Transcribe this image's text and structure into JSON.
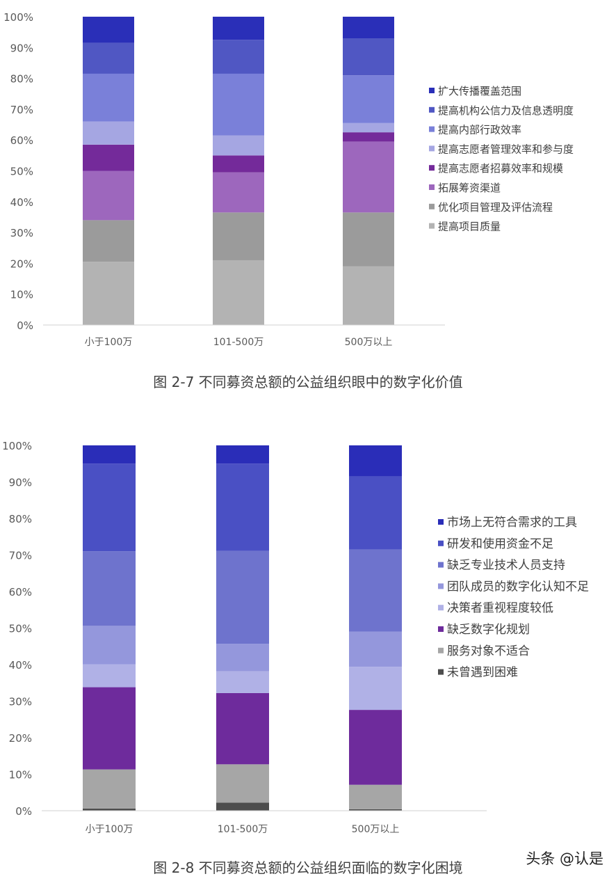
{
  "chart_data": [
    {
      "type": "bar",
      "stacked": true,
      "percent": true,
      "caption": "图 2-7 不同募资总额的公益组织眼中的数字化价值",
      "categories": [
        "小于100万",
        "101-500万",
        "500万以上"
      ],
      "yticks": [
        "0%",
        "10%",
        "20%",
        "30%",
        "40%",
        "50%",
        "60%",
        "70%",
        "80%",
        "90%",
        "100%"
      ],
      "ylim": [
        0,
        100
      ],
      "legend_position": "right",
      "series": [
        {
          "name": "提高项目质量",
          "color": "#b3b3b3",
          "values": [
            20.5,
            21,
            19
          ]
        },
        {
          "name": "优化项目管理及评估流程",
          "color": "#9b9b9b",
          "values": [
            13.5,
            15.5,
            17.5
          ]
        },
        {
          "name": "拓展筹资渠道",
          "color": "#9d67bd",
          "values": [
            16,
            13,
            23
          ]
        },
        {
          "name": "提高志愿者招募效率和规模",
          "color": "#742a9a",
          "values": [
            8.5,
            5.5,
            3
          ]
        },
        {
          "name": "提高志愿者管理效率和参与度",
          "color": "#a5a6e2",
          "values": [
            7.5,
            6.5,
            3
          ]
        },
        {
          "name": "提高内部行政效率",
          "color": "#7a80d9",
          "values": [
            15.5,
            20,
            15.5
          ]
        },
        {
          "name": "提高机构公信力及信息透明度",
          "color": "#5057c3",
          "values": [
            10,
            11,
            12
          ]
        },
        {
          "name": "扩大传播覆盖范围",
          "color": "#2a2fb8",
          "values": [
            8.5,
            7.5,
            7
          ]
        }
      ]
    },
    {
      "type": "bar",
      "stacked": true,
      "percent": true,
      "caption": "图 2-8 不同募资总额的公益组织面临的数字化困境",
      "categories": [
        "小于100万",
        "101-500万",
        "500万以上"
      ],
      "yticks": [
        "0%",
        "10%",
        "20%",
        "30%",
        "40%",
        "50%",
        "60%",
        "70%",
        "80%",
        "90%",
        "100%"
      ],
      "ylim": [
        0,
        100
      ],
      "legend_position": "right",
      "series": [
        {
          "name": "未曾遇到困难",
          "color": "#4d4d4d",
          "values": [
            0.6,
            2.2,
            0.4
          ]
        },
        {
          "name": "服务对象不适合",
          "color": "#a6a6a6",
          "values": [
            10.7,
            10.5,
            6.7
          ]
        },
        {
          "name": "缺乏数字化规划",
          "color": "#6e2b9c",
          "values": [
            22.5,
            19.5,
            20.5
          ]
        },
        {
          "name": "决策者重视程度较低",
          "color": "#b0b1e6",
          "values": [
            6.3,
            6,
            11.8
          ]
        },
        {
          "name": "团队成员的数字化认知不足",
          "color": "#9497dc",
          "values": [
            10.5,
            7.5,
            9.6
          ]
        },
        {
          "name": "缺乏专业技术人员支持",
          "color": "#6e73cd",
          "values": [
            20.4,
            25.4,
            22.5
          ]
        },
        {
          "name": "研发和使用资金不足",
          "color": "#4a50c4",
          "values": [
            24,
            23.9,
            20
          ]
        },
        {
          "name": "市场上无符合需求的工具",
          "color": "#2a2db8",
          "values": [
            5,
            5,
            8.5
          ]
        }
      ]
    }
  ],
  "watermark": "头条 @认是"
}
